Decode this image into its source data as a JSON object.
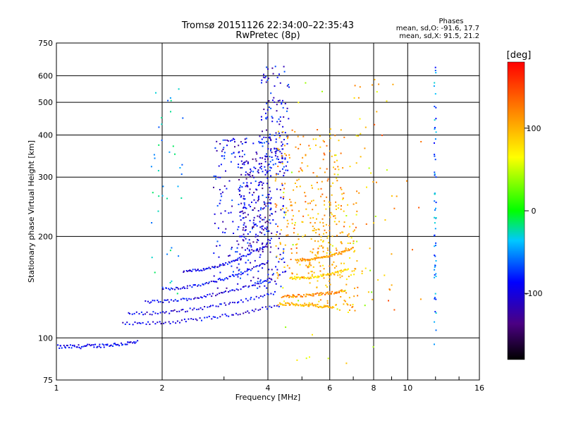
{
  "chart_data": {
    "type": "scatter",
    "title": "Tromsø 20151126 22:34:00–22:35:43",
    "subtitle": "RwPretec (8p)",
    "xlabel": "Frequency [MHz]",
    "ylabel": "Stationary phase Virtual Height [km]",
    "x_scale": "log",
    "y_scale": "log",
    "xlim": [
      1,
      16
    ],
    "ylim": [
      75,
      750
    ],
    "x_ticks": [
      "1",
      "2",
      "4",
      "6",
      "8",
      "10",
      "16"
    ],
    "y_ticks": [
      "75",
      "100",
      "200",
      "300",
      "400",
      "500",
      "600",
      "750"
    ],
    "grid": true,
    "phase_stats": {
      "title": "Phases",
      "line_o": "mean, sd,O: -91.6, 17.7",
      "line_x": "mean, sd,X:  91.5, 21.2"
    },
    "colorbar": {
      "label": "[deg]",
      "ticks": [
        "100",
        "0",
        "-100"
      ],
      "tick_values": [
        100,
        0,
        -100
      ],
      "range": [
        -180,
        180
      ]
    },
    "traces": [
      {
        "x": [
          1.0,
          1.7
        ],
        "y": [
          94,
          97
        ],
        "phase": -95
      },
      {
        "x": [
          1.55,
          4.3
        ],
        "y": [
          110,
          125
        ],
        "phase": -100
      },
      {
        "x": [
          1.6,
          4.2
        ],
        "y": [
          118,
          136
        ],
        "phase": -98
      },
      {
        "x": [
          1.8,
          4.1
        ],
        "y": [
          128,
          150
        ],
        "phase": -95
      },
      {
        "x": [
          2.0,
          4.0
        ],
        "y": [
          140,
          168
        ],
        "phase": -92
      },
      {
        "x": [
          2.3,
          4.0
        ],
        "y": [
          158,
          190
        ],
        "phase": -96
      },
      {
        "x": [
          4.3,
          6.1
        ],
        "y": [
          126,
          123
        ],
        "phase": 95
      },
      {
        "x": [
          4.4,
          6.6
        ],
        "y": [
          133,
          138
        ],
        "phase": 120
      },
      {
        "x": [
          4.6,
          6.8
        ],
        "y": [
          150,
          160
        ],
        "phase": 80
      },
      {
        "x": [
          4.8,
          7.0
        ],
        "y": [
          170,
          185
        ],
        "phase": 110
      }
    ],
    "clusters": [
      {
        "x": [
          2.8,
          4.5
        ],
        "y": [
          140,
          400
        ],
        "n": 320,
        "phase": -95
      },
      {
        "x": [
          3.3,
          4.1
        ],
        "y": [
          180,
          340
        ],
        "n": 140,
        "phase": -110
      },
      {
        "x": [
          3.8,
          4.6
        ],
        "y": [
          300,
          640
        ],
        "n": 120,
        "phase": -95
      },
      {
        "x": [
          4.2,
          6.6
        ],
        "y": [
          150,
          420
        ],
        "n": 220,
        "phase": 110
      },
      {
        "x": [
          5.2,
          7.2
        ],
        "y": [
          120,
          260
        ],
        "n": 150,
        "phase": 95
      },
      {
        "x": [
          4.4,
          8.8
        ],
        "y": [
          80,
          620
        ],
        "n": 70,
        "phase": 60
      },
      {
        "x": [
          1.85,
          2.3
        ],
        "y": [
          130,
          600
        ],
        "n": 40,
        "phase": -40
      },
      {
        "x": [
          11.9,
          12.05
        ],
        "y": [
          95,
          640
        ],
        "n": 60,
        "phase": -60
      },
      {
        "x": [
          7.0,
          11.0
        ],
        "y": [
          120,
          600
        ],
        "n": 40,
        "phase": 120
      }
    ]
  }
}
